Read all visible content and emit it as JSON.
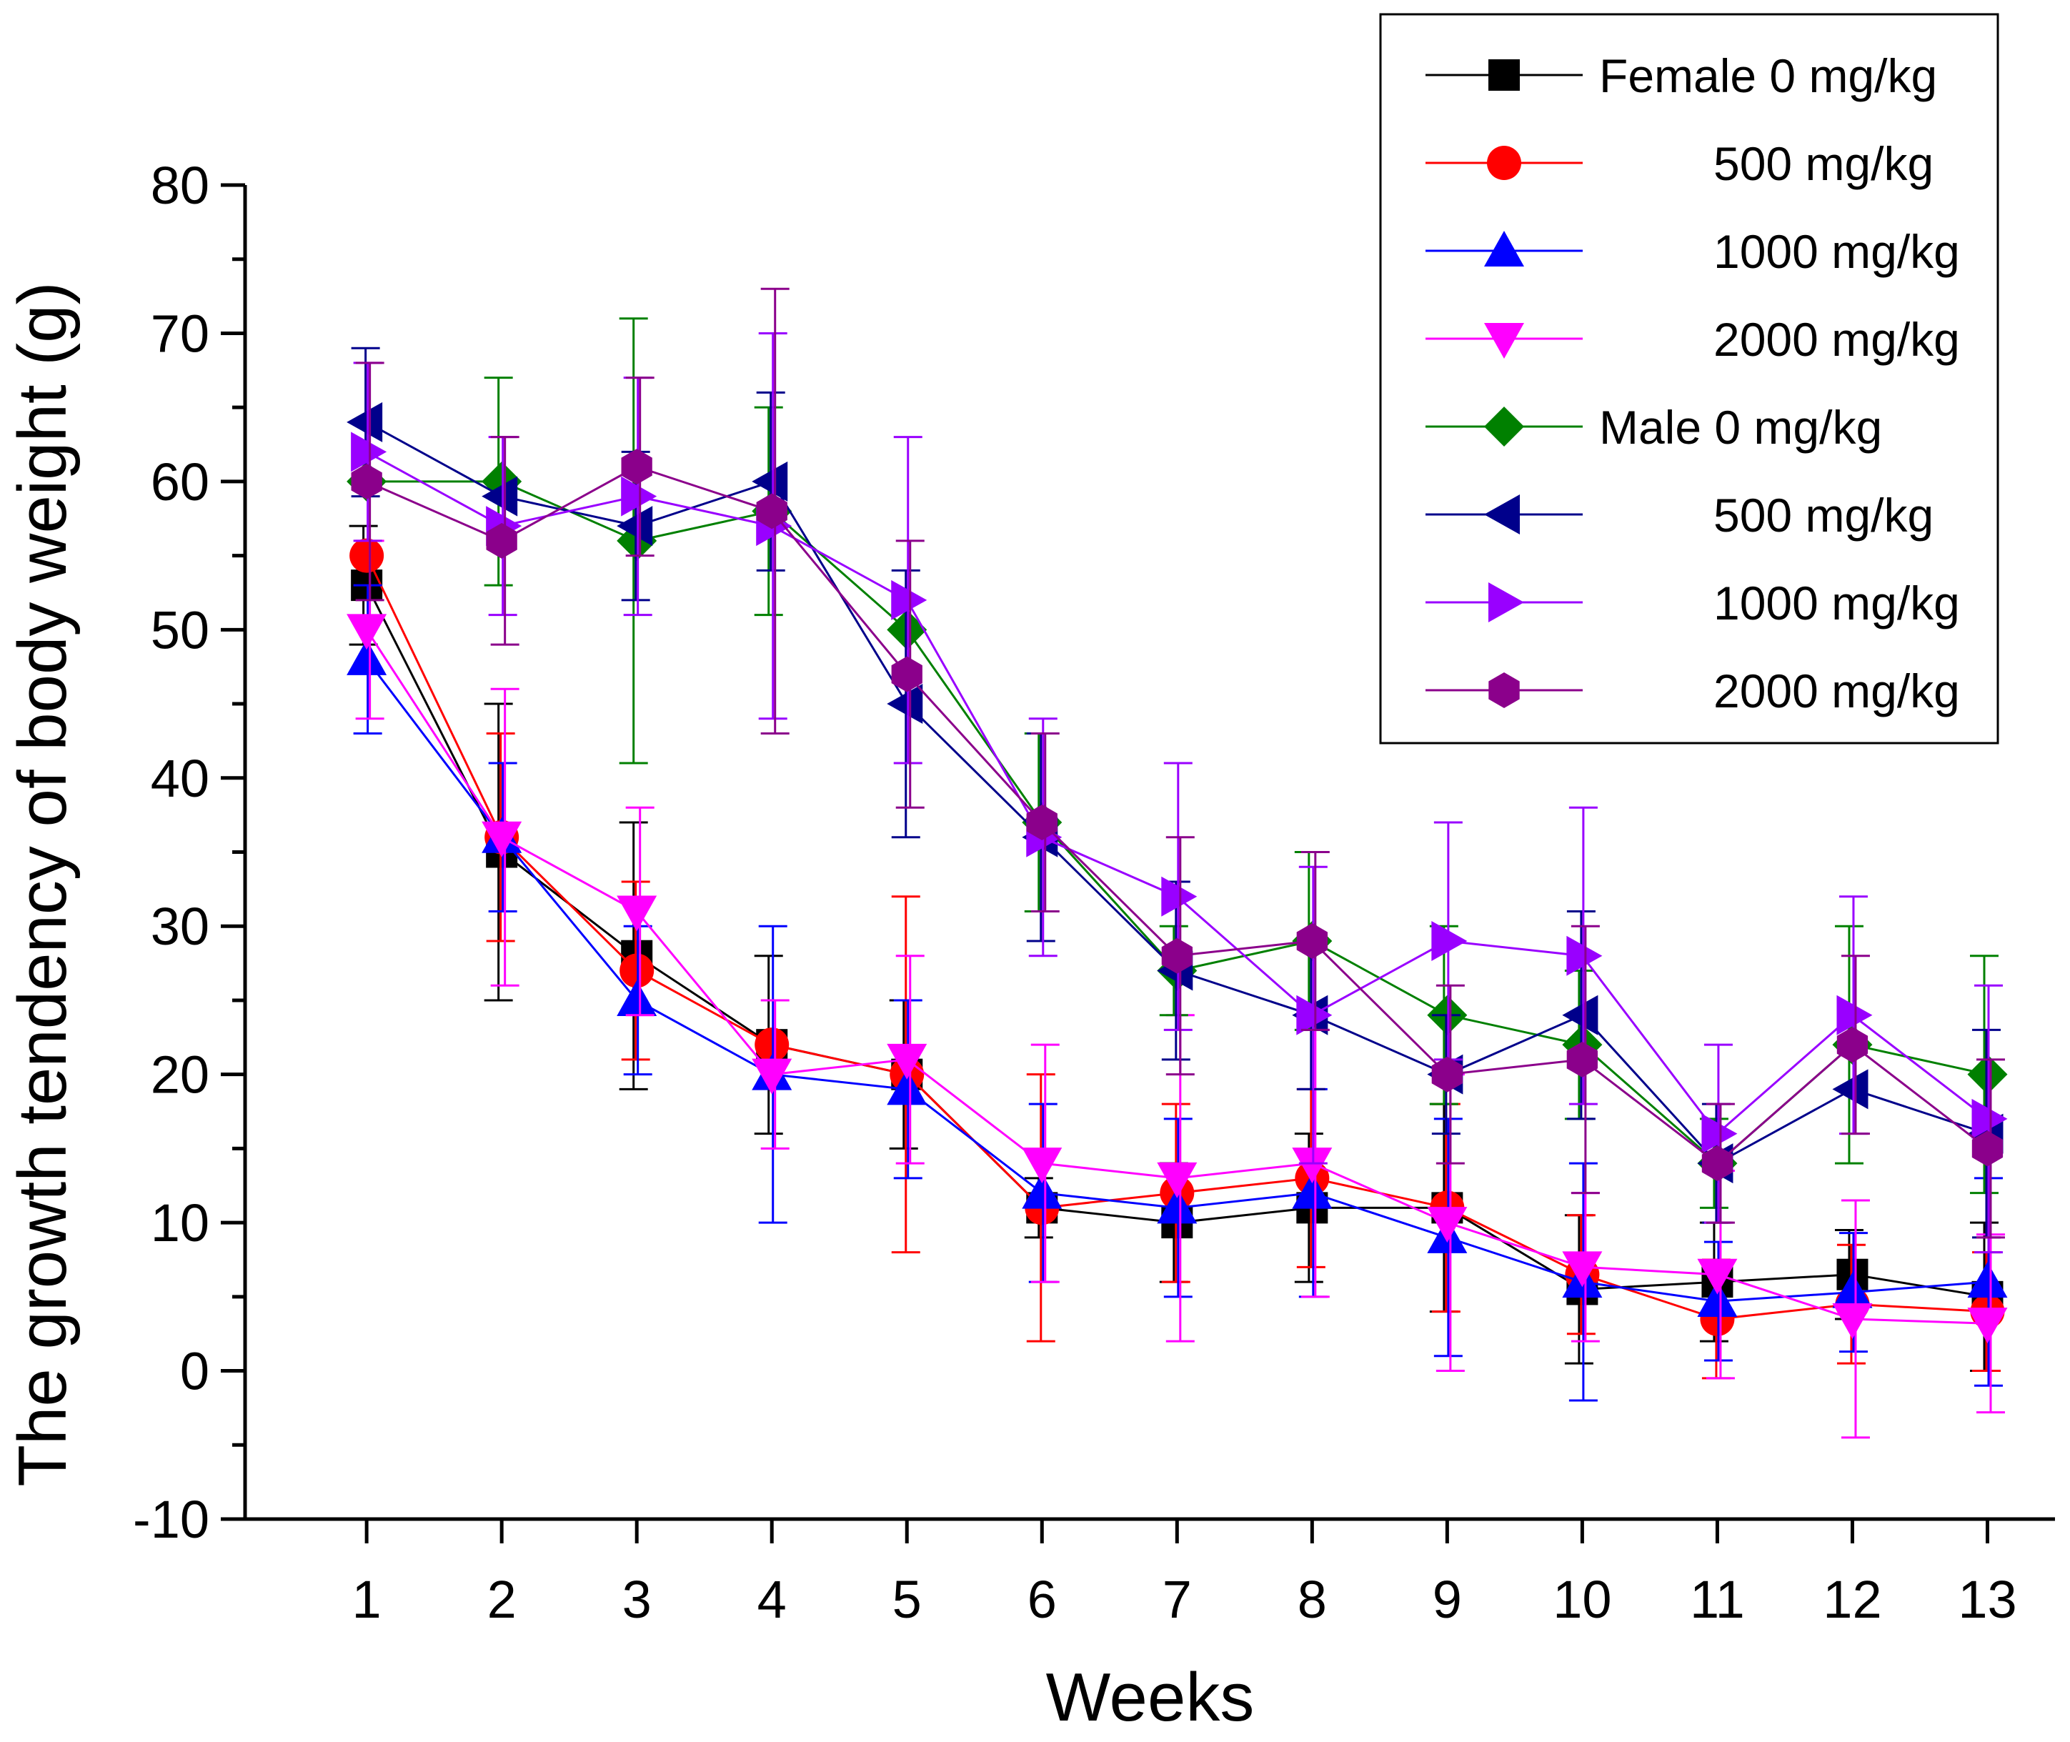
{
  "chart_data": {
    "type": "line",
    "title": "",
    "xlabel": "Weeks",
    "ylabel": "The growth tendency of body weight (g)",
    "x": [
      1,
      2,
      3,
      4,
      5,
      6,
      7,
      8,
      9,
      10,
      11,
      12,
      13
    ],
    "xlim": [
      0.1,
      13.5
    ],
    "ylim": [
      -10,
      80
    ],
    "yticks": [
      -10,
      0,
      10,
      20,
      30,
      40,
      50,
      60,
      70,
      80
    ],
    "xticks": [
      1,
      2,
      3,
      4,
      5,
      6,
      7,
      8,
      9,
      10,
      11,
      12,
      13
    ],
    "grid": false,
    "legend_position": "top-right",
    "series": [
      {
        "name": "Female 0 mg/kg",
        "color": "#000000",
        "marker": "square",
        "values": [
          53,
          35,
          28,
          22,
          20,
          11,
          10,
          11,
          11,
          5.5,
          6,
          6.5,
          5
        ],
        "errors": [
          4,
          10,
          9,
          6,
          5,
          2,
          4,
          5,
          7,
          5,
          4,
          3,
          5
        ]
      },
      {
        "name": "500 mg/kg",
        "color": "#ff0000",
        "marker": "circle",
        "values": [
          55,
          36,
          27,
          22,
          20,
          11,
          12,
          13,
          11,
          6.5,
          3.5,
          4.5,
          4
        ],
        "errors": [
          0,
          7,
          6,
          0,
          12,
          9,
          6,
          6,
          7,
          4,
          4,
          4,
          4
        ]
      },
      {
        "name": "1000 mg/kg",
        "color": "#0000ff",
        "marker": "triangle-up",
        "values": [
          48,
          36,
          25,
          20,
          19,
          12,
          11,
          12,
          9,
          6,
          4.7,
          5.3,
          6
        ],
        "errors": [
          5,
          5,
          5,
          10,
          6,
          6,
          6,
          7,
          8,
          8,
          4,
          4,
          7
        ]
      },
      {
        "name": "2000 mg/kg",
        "color": "#ff00ff",
        "marker": "triangle-down",
        "values": [
          50,
          36,
          31,
          20,
          21,
          14,
          13,
          14,
          10,
          7,
          6.5,
          3.5,
          3.2
        ],
        "errors": [
          6,
          10,
          7,
          5,
          7,
          8,
          11,
          9,
          10,
          5,
          7,
          8,
          6
        ]
      },
      {
        "name": "Male 0 mg/kg",
        "color": "#008000",
        "marker": "diamond",
        "values": [
          60,
          60,
          56,
          58,
          50,
          37,
          27,
          29,
          24,
          22,
          14,
          22,
          20
        ],
        "errors": [
          0,
          7,
          15,
          7,
          0,
          6,
          3,
          6,
          6,
          5,
          3,
          8,
          8
        ]
      },
      {
        "name": "500 mg/kg",
        "color": "#00008b",
        "marker": "triangle-left",
        "values": [
          64,
          59,
          57,
          60,
          45,
          36,
          27,
          24,
          20,
          24,
          14,
          19,
          16
        ],
        "errors": [
          5,
          0,
          5,
          6,
          9,
          7,
          6,
          5,
          4,
          7,
          4,
          0,
          7
        ]
      },
      {
        "name": "1000 mg/kg",
        "color": "#9900ff",
        "marker": "triangle-right",
        "values": [
          62,
          57,
          59,
          57,
          52,
          36,
          32,
          24,
          29,
          28,
          16,
          24,
          17
        ],
        "errors": [
          6,
          6,
          8,
          13,
          11,
          8,
          9,
          10,
          8,
          10,
          6,
          8,
          9
        ]
      },
      {
        "name": "2000 mg/kg",
        "color": "#8b008b",
        "marker": "hexagon",
        "values": [
          60,
          56,
          61,
          58,
          47,
          37,
          28,
          29,
          20,
          21,
          14,
          22,
          15
        ],
        "errors": [
          8,
          7,
          6,
          15,
          9,
          6,
          8,
          6,
          6,
          9,
          4,
          6,
          6
        ]
      }
    ]
  }
}
